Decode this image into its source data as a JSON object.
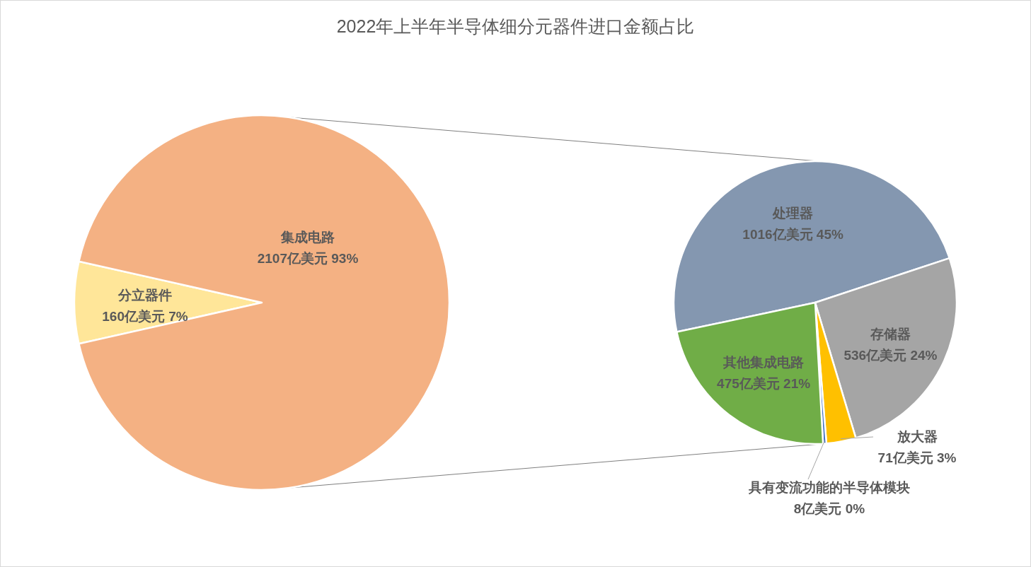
{
  "chart_data": [
    {
      "type": "pie",
      "title": "2022年上半年半导体细分元器件进口金额占比",
      "categories": [
        "分立器件",
        "集成电路"
      ],
      "values": [
        160,
        2107
      ],
      "colors": [
        "#ffe699",
        "#f4b183"
      ],
      "value_labels": [
        "160亿美元 7%",
        "2107亿美元 93%"
      ]
    },
    {
      "type": "pie",
      "categories": [
        "处理器",
        "存储器",
        "放大器",
        "具有变流功能的半导体模块",
        "其他集成电路"
      ],
      "values": [
        1016,
        536,
        71,
        8,
        475
      ],
      "colors": [
        "#8497b0",
        "#a5a5a5",
        "#ffc000",
        "#4472c4",
        "#70ad47"
      ],
      "value_labels": [
        "1016亿美元 45%",
        "536亿美元 24%",
        "71亿美元  3%",
        "8亿美元  0%",
        "475亿美元 21%"
      ]
    }
  ]
}
